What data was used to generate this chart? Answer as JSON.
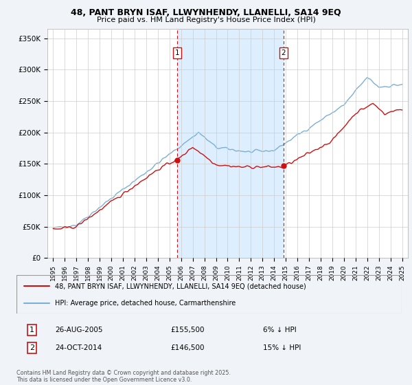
{
  "title": "48, PANT BRYN ISAF, LLWYNHENDY, LLANELLI, SA14 9EQ",
  "subtitle": "Price paid vs. HM Land Registry's House Price Index (HPI)",
  "ylabel_ticks": [
    "£0",
    "£50K",
    "£100K",
    "£150K",
    "£200K",
    "£250K",
    "£300K",
    "£350K"
  ],
  "ytick_vals": [
    0,
    50000,
    100000,
    150000,
    200000,
    250000,
    300000,
    350000
  ],
  "ylim": [
    0,
    365000
  ],
  "xlim_start": 1994.5,
  "xlim_end": 2025.5,
  "hpi_color": "#7bafd4",
  "price_color": "#cc1111",
  "marker1_x": 2005.65,
  "marker1_y": 155500,
  "marker2_x": 2014.81,
  "marker2_y": 146500,
  "shade_color": "#ddeeff",
  "legend_price_label": "48, PANT BRYN ISAF, LLWYNHENDY, LLANELLI, SA14 9EQ (detached house)",
  "legend_hpi_label": "HPI: Average price, detached house, Carmarthenshire",
  "annotation1_num": "1",
  "annotation1_date": "26-AUG-2005",
  "annotation1_price": "£155,500",
  "annotation1_pct": "6% ↓ HPI",
  "annotation2_num": "2",
  "annotation2_date": "24-OCT-2014",
  "annotation2_price": "£146,500",
  "annotation2_pct": "15% ↓ HPI",
  "footer": "Contains HM Land Registry data © Crown copyright and database right 2025.\nThis data is licensed under the Open Government Licence v3.0.",
  "bg_color": "#f0f4f8",
  "plot_bg_color": "#ffffff",
  "grid_color": "#cccccc"
}
